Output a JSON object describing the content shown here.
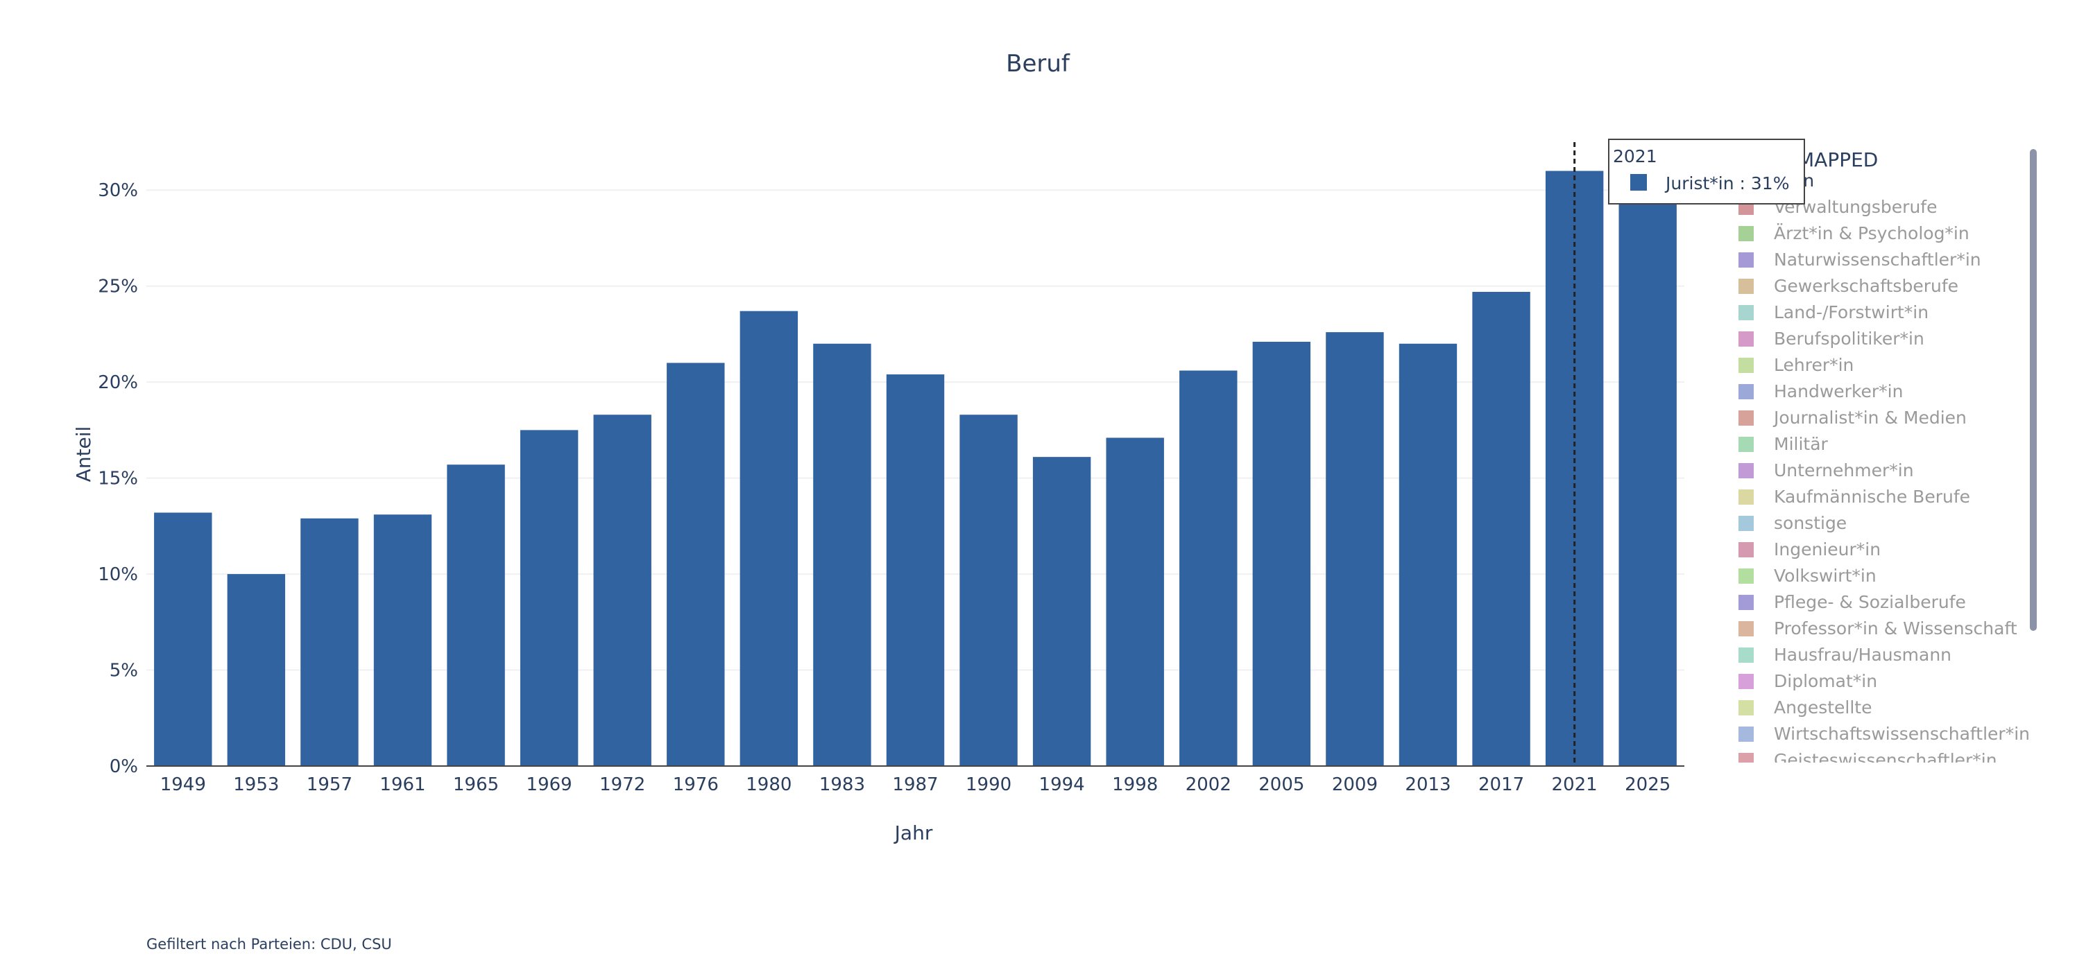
{
  "footnote": "Gefiltert nach Parteien: CDU, CSU",
  "colors": {
    "bar": "#3163a0",
    "grid": "#eef0f3",
    "axis_line": "#444444",
    "text": "#2a3f5f",
    "legend_inactive_text": "#9a9a9a",
    "scrollbar": "#8c93a8"
  },
  "chart_data": {
    "type": "bar",
    "title": "Beruf",
    "xlabel": "Jahr",
    "ylabel": "Anteil",
    "categories": [
      "1949",
      "1953",
      "1957",
      "1961",
      "1965",
      "1969",
      "1972",
      "1976",
      "1980",
      "1983",
      "1987",
      "1990",
      "1994",
      "1998",
      "2002",
      "2005",
      "2009",
      "2013",
      "2017",
      "2021",
      "2025"
    ],
    "series": [
      {
        "name": "Jurist*in",
        "color": "#3163a0",
        "values": [
          13.2,
          10.0,
          12.9,
          13.1,
          15.7,
          17.5,
          18.3,
          21.0,
          23.7,
          22.0,
          20.4,
          18.3,
          16.1,
          17.1,
          20.6,
          22.1,
          22.6,
          22.0,
          24.7,
          31.0,
          31.0
        ]
      }
    ],
    "ylim": [
      0,
      32.5
    ],
    "yticks": [
      0,
      5,
      10,
      15,
      20,
      25,
      30
    ],
    "ytick_labels": [
      "0%",
      "5%",
      "10%",
      "15%",
      "20%",
      "25%",
      "30%"
    ],
    "grid": true,
    "legend": {
      "placement": "right",
      "title": "MAPPED",
      "title_visible": "MAPPED",
      "entries": [
        {
          "name": "Jurist*in",
          "label_visible": "st*in",
          "color": "#3163a0",
          "active": true
        },
        {
          "name": "Verwaltungsberufe",
          "color": "#d4959a",
          "active": false
        },
        {
          "name": "Ärzt*in & Psycholog*in",
          "color": "#a6d196",
          "active": false
        },
        {
          "name": "Naturwissenschaftler*in",
          "color": "#a59ad6",
          "active": false
        },
        {
          "name": "Gewerkschaftsberufe",
          "color": "#d6bf9a",
          "active": false
        },
        {
          "name": "Land-/Forstwirt*in",
          "color": "#a7d6d1",
          "active": false
        },
        {
          "name": "Berufspolitiker*in",
          "color": "#d59ac8",
          "active": false
        },
        {
          "name": "Lehrer*in",
          "color": "#c3dea0",
          "active": false
        },
        {
          "name": "Handwerker*in",
          "color": "#9ba8d8",
          "active": false
        },
        {
          "name": "Journalist*in & Medien",
          "color": "#d6a29a",
          "active": false
        },
        {
          "name": "Militär",
          "color": "#a6dab4",
          "active": false
        },
        {
          "name": "Unternehmer*in",
          "color": "#c29ad6",
          "active": false
        },
        {
          "name": "Kaufmännische Berufe",
          "color": "#dcd8a2",
          "active": false
        },
        {
          "name": "sonstige",
          "color": "#a4c8dc",
          "active": false
        },
        {
          "name": "Ingenieur*in",
          "color": "#d69ab0",
          "active": false
        },
        {
          "name": "Volkswirt*in",
          "color": "#b2de9f",
          "active": false
        },
        {
          "name": "Pflege- & Sozialberufe",
          "color": "#a39ad8",
          "active": false
        },
        {
          "name": "Professor*in & Wissenschaft",
          "color": "#dcb59f",
          "active": false
        },
        {
          "name": "Hausfrau/Hausmann",
          "color": "#a6dcc9",
          "active": false
        },
        {
          "name": "Diplomat*in",
          "color": "#d8a0da",
          "active": false
        },
        {
          "name": "Angestellte",
          "color": "#d4e0a3",
          "active": false
        },
        {
          "name": "Wirtschaftswissenschaftler*in",
          "color": "#a5b9de",
          "active": false
        },
        {
          "name": "Geisteswissenschaftler*in",
          "color": "#dba0a8",
          "active": false
        }
      ]
    },
    "hover": {
      "category": "2021",
      "series": "Jurist*in",
      "value_label": "31%",
      "text": "Jurist*in : 31%"
    }
  }
}
